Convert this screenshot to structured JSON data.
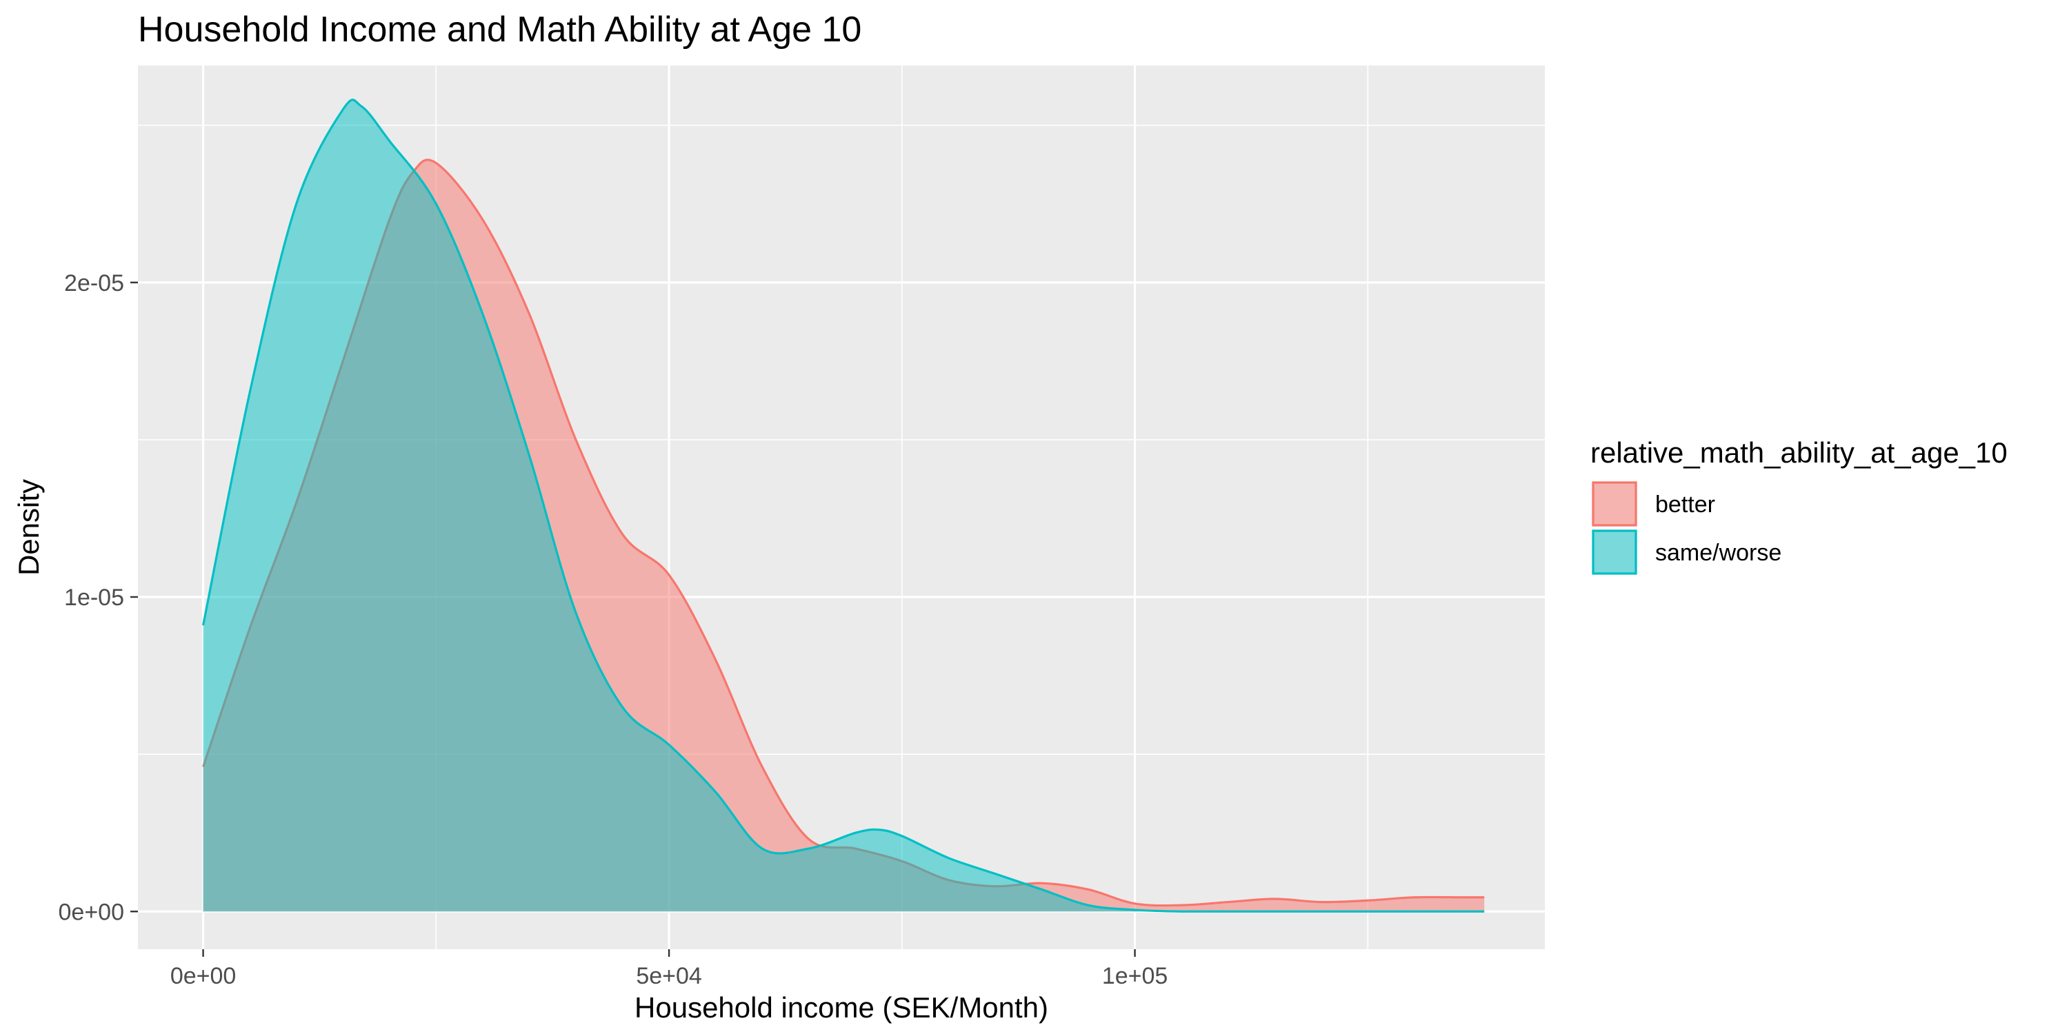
{
  "chart_data": {
    "type": "area",
    "subtype": "density",
    "title": "Household Income and Math Ability at Age 10",
    "xlabel": "Household income (SEK/Month)",
    "ylabel": "Density",
    "xlim": [
      -7000,
      144000
    ],
    "ylim": [
      -1.2e-06,
      2.69e-05
    ],
    "x_ticks": [
      {
        "value": 0,
        "label": "0e+00"
      },
      {
        "value": 50000,
        "label": "5e+04"
      },
      {
        "value": 100000,
        "label": "1e+05"
      }
    ],
    "y_ticks": [
      {
        "value": 0,
        "label": "0e+00"
      },
      {
        "value": 1e-05,
        "label": "1e-05"
      },
      {
        "value": 2e-05,
        "label": "2e-05"
      }
    ],
    "x_minor_breaks": [
      25000,
      75000,
      125000
    ],
    "y_minor_breaks": [
      5e-06,
      1.5e-05,
      2.5e-05
    ],
    "grid": true,
    "legend": {
      "title": "relative_math_ability_at_age_10",
      "position": "right"
    },
    "series": [
      {
        "name": "better",
        "color": "#F8766D",
        "fill": "#F8766D",
        "fill_opacity": 0.5,
        "x": [
          0,
          5000,
          10000,
          15000,
          20000,
          22500,
          25000,
          30000,
          35000,
          40000,
          45000,
          50000,
          55000,
          60000,
          65000,
          70000,
          75000,
          80000,
          85000,
          90000,
          95000,
          100000,
          105000,
          110000,
          115000,
          120000,
          125000,
          130000,
          135000,
          137500
        ],
        "values": [
          4.6e-06,
          9e-06,
          1.3e-05,
          1.75e-05,
          2.2e-05,
          2.35e-05,
          2.38e-05,
          2.2e-05,
          1.9e-05,
          1.5e-05,
          1.2e-05,
          1.07e-05,
          8e-06,
          4.6e-06,
          2.3e-06,
          2e-06,
          1.6e-06,
          1e-06,
          8e-07,
          9e-07,
          7e-07,
          2.5e-07,
          2e-07,
          3e-07,
          4e-07,
          3e-07,
          3.5e-07,
          4.5e-07,
          4.5e-07,
          4.5e-07
        ]
      },
      {
        "name": "same/worse",
        "color": "#00BFC4",
        "fill": "#00BFC4",
        "fill_opacity": 0.5,
        "x": [
          0,
          5000,
          10000,
          15000,
          17000,
          20000,
          25000,
          30000,
          35000,
          40000,
          45000,
          50000,
          55000,
          60000,
          65000,
          70000,
          72500,
          75000,
          80000,
          85000,
          90000,
          95000,
          100000,
          105000,
          110000,
          115000,
          120000,
          125000,
          130000,
          135000,
          137500
        ],
        "values": [
          9.1e-06,
          1.65e-05,
          2.25e-05,
          2.55e-05,
          2.56e-05,
          2.45e-05,
          2.25e-05,
          1.9e-05,
          1.45e-05,
          9.5e-06,
          6.5e-06,
          5.3e-06,
          3.8e-06,
          2e-06,
          2e-06,
          2.5e-06,
          2.6e-06,
          2.4e-06,
          1.7e-06,
          1.2e-06,
          7e-07,
          2e-07,
          5e-08,
          0,
          0,
          0,
          0,
          0,
          0,
          0,
          0
        ]
      }
    ]
  }
}
